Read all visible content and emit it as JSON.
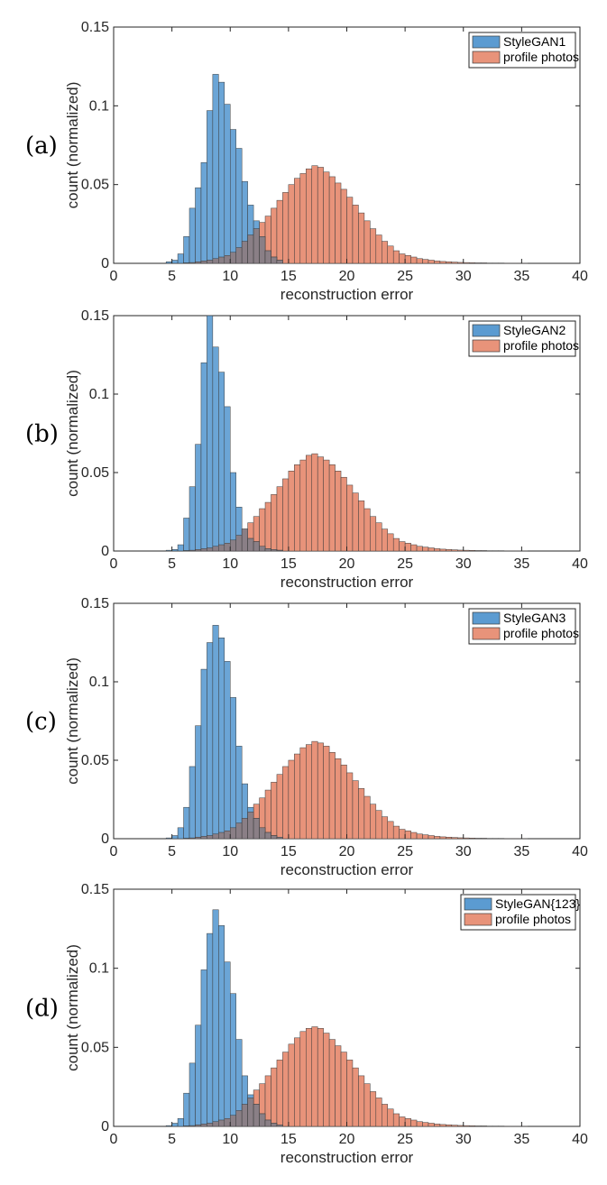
{
  "colors": {
    "series1": "#5b9bd1",
    "series2": "#e8937a",
    "overlap": "#8a7f86",
    "bar_edge": "#3c3c3c",
    "axis": "#262626"
  },
  "chart_data": [
    {
      "type": "bar",
      "panel_label": "(a)",
      "xlabel": "reconstruction error",
      "ylabel": "count (normalized)",
      "xlim": [
        0,
        40
      ],
      "ylim": [
        0,
        0.15
      ],
      "xticks": [
        "0",
        "5",
        "10",
        "15",
        "20",
        "25",
        "30",
        "35",
        "40"
      ],
      "yticks": [
        "0",
        "0.05",
        "0.1",
        "0.15"
      ],
      "grid": false,
      "legend_position": "top-right",
      "bin_width": 0.5,
      "series": [
        {
          "name": "StyleGAN1",
          "x": [
            4.5,
            5.0,
            5.5,
            6.0,
            6.5,
            7.0,
            7.5,
            8.0,
            8.5,
            9.0,
            9.5,
            10.0,
            10.5,
            11.0,
            11.5,
            12.0,
            12.5,
            13.0,
            13.5,
            14.0
          ],
          "values": [
            0.001,
            0.002,
            0.006,
            0.017,
            0.035,
            0.048,
            0.064,
            0.097,
            0.12,
            0.115,
            0.101,
            0.085,
            0.073,
            0.052,
            0.037,
            0.027,
            0.017,
            0.008,
            0.004,
            0.002
          ]
        },
        {
          "name": "profile photos",
          "x": [
            6.0,
            6.5,
            7.0,
            7.5,
            8.0,
            8.5,
            9.0,
            9.5,
            10.0,
            10.5,
            11.0,
            11.5,
            12.0,
            12.5,
            13.0,
            13.5,
            14.0,
            14.5,
            15.0,
            15.5,
            16.0,
            16.5,
            17.0,
            17.5,
            18.0,
            18.5,
            19.0,
            19.5,
            20.0,
            20.5,
            21.0,
            21.5,
            22.0,
            22.5,
            23.0,
            23.5,
            24.0,
            24.5,
            25.0,
            25.5,
            26.0,
            26.5,
            27.0,
            27.5,
            28.0,
            28.5,
            29.0,
            29.5,
            30.0,
            30.5,
            31.0,
            31.5,
            32.0,
            32.5,
            33.0,
            33.5,
            34.0,
            34.5,
            35.0
          ],
          "values": [
            0.0003,
            0.0005,
            0.001,
            0.0015,
            0.002,
            0.003,
            0.004,
            0.005,
            0.007,
            0.01,
            0.014,
            0.018,
            0.022,
            0.026,
            0.03,
            0.035,
            0.04,
            0.045,
            0.05,
            0.054,
            0.057,
            0.06,
            0.062,
            0.061,
            0.058,
            0.055,
            0.051,
            0.047,
            0.042,
            0.037,
            0.032,
            0.027,
            0.022,
            0.018,
            0.014,
            0.011,
            0.008,
            0.006,
            0.005,
            0.004,
            0.003,
            0.0025,
            0.002,
            0.0015,
            0.0012,
            0.001,
            0.0008,
            0.0006,
            0.0005,
            0.0004,
            0.0003,
            0.0003,
            0.0002,
            0.0002,
            0.0002,
            0.0001,
            0.0001,
            0.0001,
            0.0001
          ]
        }
      ]
    },
    {
      "type": "bar",
      "panel_label": "(b)",
      "xlabel": "reconstruction error",
      "ylabel": "count (normalized)",
      "xlim": [
        0,
        40
      ],
      "ylim": [
        0,
        0.15
      ],
      "xticks": [
        "0",
        "5",
        "10",
        "15",
        "20",
        "25",
        "30",
        "35",
        "40"
      ],
      "yticks": [
        "0",
        "0.05",
        "0.1",
        "0.15"
      ],
      "grid": false,
      "legend_position": "top-right",
      "bin_width": 0.5,
      "series": [
        {
          "name": "StyleGAN2",
          "x": [
            4.5,
            5.0,
            5.5,
            6.0,
            6.5,
            7.0,
            7.5,
            8.0,
            8.5,
            9.0,
            9.5,
            10.0,
            10.5,
            11.0,
            11.5,
            12.0,
            12.5,
            13.0,
            13.5,
            14.0
          ],
          "values": [
            0.0005,
            0.001,
            0.004,
            0.021,
            0.041,
            0.068,
            0.12,
            0.15,
            0.13,
            0.114,
            0.092,
            0.05,
            0.028,
            0.014,
            0.008,
            0.006,
            0.003,
            0.0015,
            0.001,
            0.0005
          ]
        },
        {
          "name": "profile photos",
          "x": [
            6.0,
            6.5,
            7.0,
            7.5,
            8.0,
            8.5,
            9.0,
            9.5,
            10.0,
            10.5,
            11.0,
            11.5,
            12.0,
            12.5,
            13.0,
            13.5,
            14.0,
            14.5,
            15.0,
            15.5,
            16.0,
            16.5,
            17.0,
            17.5,
            18.0,
            18.5,
            19.0,
            19.5,
            20.0,
            20.5,
            21.0,
            21.5,
            22.0,
            22.5,
            23.0,
            23.5,
            24.0,
            24.5,
            25.0,
            25.5,
            26.0,
            26.5,
            27.0,
            27.5,
            28.0,
            28.5,
            29.0,
            29.5,
            30.0,
            30.5,
            31.0,
            31.5,
            32.0,
            32.5,
            33.0,
            33.5,
            34.0,
            34.5,
            35.0
          ],
          "values": [
            0.0003,
            0.0005,
            0.001,
            0.0015,
            0.002,
            0.003,
            0.004,
            0.005,
            0.007,
            0.01,
            0.014,
            0.018,
            0.022,
            0.027,
            0.031,
            0.036,
            0.041,
            0.046,
            0.051,
            0.055,
            0.058,
            0.061,
            0.062,
            0.06,
            0.058,
            0.055,
            0.051,
            0.047,
            0.042,
            0.037,
            0.032,
            0.027,
            0.022,
            0.018,
            0.014,
            0.011,
            0.008,
            0.006,
            0.005,
            0.004,
            0.003,
            0.0025,
            0.002,
            0.0015,
            0.0012,
            0.001,
            0.0008,
            0.0006,
            0.0005,
            0.0004,
            0.0003,
            0.0003,
            0.0002,
            0.0002,
            0.0002,
            0.0001,
            0.0001,
            0.0001,
            0.0001
          ]
        }
      ]
    },
    {
      "type": "bar",
      "panel_label": "(c)",
      "xlabel": "reconstruction error",
      "ylabel": "count (normalized)",
      "xlim": [
        0,
        40
      ],
      "ylim": [
        0,
        0.15
      ],
      "xticks": [
        "0",
        "5",
        "10",
        "15",
        "20",
        "25",
        "30",
        "35",
        "40"
      ],
      "yticks": [
        "0",
        "0.05",
        "0.1",
        "0.15"
      ],
      "grid": false,
      "legend_position": "top-right",
      "bin_width": 0.5,
      "series": [
        {
          "name": "StyleGAN3",
          "x": [
            4.5,
            5.0,
            5.5,
            6.0,
            6.5,
            7.0,
            7.5,
            8.0,
            8.5,
            9.0,
            9.5,
            10.0,
            10.5,
            11.0,
            11.5,
            12.0,
            12.5,
            13.0,
            13.5,
            14.0
          ],
          "values": [
            0.0005,
            0.002,
            0.007,
            0.02,
            0.046,
            0.072,
            0.108,
            0.125,
            0.136,
            0.128,
            0.113,
            0.09,
            0.059,
            0.035,
            0.02,
            0.013,
            0.007,
            0.004,
            0.002,
            0.001
          ]
        },
        {
          "name": "profile photos",
          "x": [
            6.0,
            6.5,
            7.0,
            7.5,
            8.0,
            8.5,
            9.0,
            9.5,
            10.0,
            10.5,
            11.0,
            11.5,
            12.0,
            12.5,
            13.0,
            13.5,
            14.0,
            14.5,
            15.0,
            15.5,
            16.0,
            16.5,
            17.0,
            17.5,
            18.0,
            18.5,
            19.0,
            19.5,
            20.0,
            20.5,
            21.0,
            21.5,
            22.0,
            22.5,
            23.0,
            23.5,
            24.0,
            24.5,
            25.0,
            25.5,
            26.0,
            26.5,
            27.0,
            27.5,
            28.0,
            28.5,
            29.0,
            29.5,
            30.0,
            30.5,
            31.0,
            31.5,
            32.0,
            32.5,
            33.0,
            33.5,
            34.0,
            34.5,
            35.0
          ],
          "values": [
            0.0003,
            0.0005,
            0.001,
            0.0015,
            0.002,
            0.003,
            0.004,
            0.005,
            0.007,
            0.01,
            0.013,
            0.017,
            0.022,
            0.026,
            0.031,
            0.036,
            0.041,
            0.046,
            0.05,
            0.054,
            0.058,
            0.06,
            0.062,
            0.061,
            0.059,
            0.055,
            0.051,
            0.047,
            0.042,
            0.037,
            0.032,
            0.027,
            0.022,
            0.018,
            0.014,
            0.011,
            0.008,
            0.006,
            0.005,
            0.004,
            0.003,
            0.0025,
            0.002,
            0.0015,
            0.0012,
            0.001,
            0.0008,
            0.0006,
            0.0005,
            0.0004,
            0.0003,
            0.0003,
            0.0002,
            0.0002,
            0.0002,
            0.0001,
            0.0001,
            0.0001,
            0.0001
          ]
        }
      ]
    },
    {
      "type": "bar",
      "panel_label": "(d)",
      "xlabel": "reconstruction error",
      "ylabel": "count (normalized)",
      "xlim": [
        0,
        40
      ],
      "ylim": [
        0,
        0.15
      ],
      "xticks": [
        "0",
        "5",
        "10",
        "15",
        "20",
        "25",
        "30",
        "35",
        "40"
      ],
      "yticks": [
        "0",
        "0.05",
        "0.1",
        "0.15"
      ],
      "grid": false,
      "legend_position": "top-right",
      "bin_width": 0.5,
      "series": [
        {
          "name": "StyleGAN{123}",
          "x": [
            4.5,
            5.0,
            5.5,
            6.0,
            6.5,
            7.0,
            7.5,
            8.0,
            8.5,
            9.0,
            9.5,
            10.0,
            10.5,
            11.0,
            11.5,
            12.0,
            12.5,
            13.0,
            13.5,
            14.0
          ],
          "values": [
            0.0005,
            0.002,
            0.005,
            0.021,
            0.04,
            0.064,
            0.099,
            0.122,
            0.137,
            0.127,
            0.104,
            0.084,
            0.055,
            0.032,
            0.02,
            0.014,
            0.008,
            0.004,
            0.002,
            0.001
          ]
        },
        {
          "name": "profile photos",
          "x": [
            6.0,
            6.5,
            7.0,
            7.5,
            8.0,
            8.5,
            9.0,
            9.5,
            10.0,
            10.5,
            11.0,
            11.5,
            12.0,
            12.5,
            13.0,
            13.5,
            14.0,
            14.5,
            15.0,
            15.5,
            16.0,
            16.5,
            17.0,
            17.5,
            18.0,
            18.5,
            19.0,
            19.5,
            20.0,
            20.5,
            21.0,
            21.5,
            22.0,
            22.5,
            23.0,
            23.5,
            24.0,
            24.5,
            25.0,
            25.5,
            26.0,
            26.5,
            27.0,
            27.5,
            28.0,
            28.5,
            29.0,
            29.5,
            30.0,
            30.5,
            31.0,
            31.5,
            32.0,
            32.5,
            33.0,
            33.5,
            34.0,
            34.5,
            35.0
          ],
          "values": [
            0.0003,
            0.0005,
            0.001,
            0.0015,
            0.002,
            0.003,
            0.004,
            0.005,
            0.007,
            0.01,
            0.014,
            0.018,
            0.023,
            0.027,
            0.032,
            0.037,
            0.042,
            0.047,
            0.052,
            0.056,
            0.06,
            0.062,
            0.063,
            0.062,
            0.059,
            0.055,
            0.051,
            0.047,
            0.042,
            0.037,
            0.032,
            0.027,
            0.022,
            0.018,
            0.014,
            0.011,
            0.008,
            0.006,
            0.005,
            0.004,
            0.003,
            0.0025,
            0.002,
            0.0015,
            0.0012,
            0.001,
            0.0008,
            0.0006,
            0.0005,
            0.0004,
            0.0003,
            0.0003,
            0.0002,
            0.0002,
            0.0002,
            0.0001,
            0.0001,
            0.0001,
            0.0001
          ]
        }
      ]
    }
  ]
}
